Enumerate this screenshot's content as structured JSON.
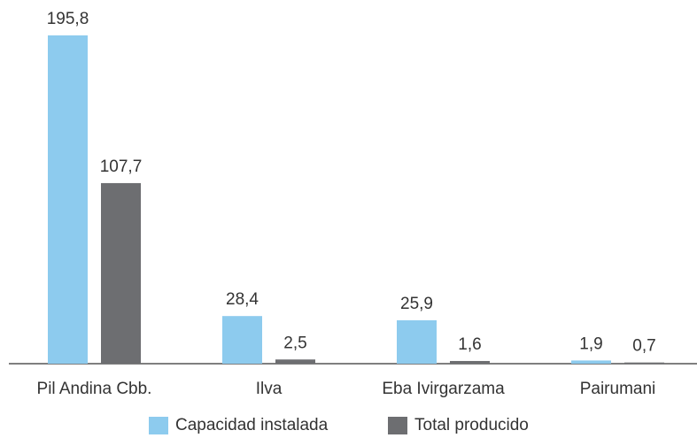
{
  "chart_data": {
    "type": "bar",
    "categories": [
      "Pil Andina Cbb.",
      "Ilva",
      "Eba Ivirgarzama",
      "Pairumani"
    ],
    "series": [
      {
        "name": "Capacidad instalada",
        "color": "#8dcbee",
        "values": [
          195.8,
          28.4,
          25.9,
          1.9
        ],
        "value_labels": [
          "195,8",
          "28,4",
          "25,9",
          "1,9"
        ]
      },
      {
        "name": "Total producido",
        "color": "#6d6e71",
        "values": [
          107.7,
          2.5,
          1.6,
          0.7
        ],
        "value_labels": [
          "107,7",
          "2,5",
          "1,6",
          "0,7"
        ]
      }
    ]
  }
}
